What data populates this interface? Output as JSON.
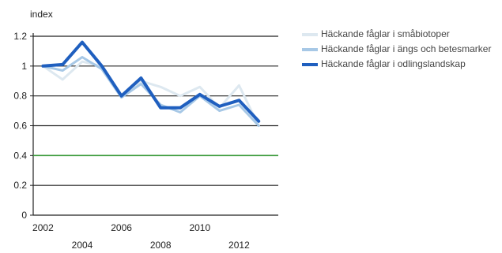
{
  "chart_data": {
    "type": "line",
    "ylabel": "index",
    "xlabel": "",
    "x": [
      2002,
      2003,
      2004,
      2005,
      2006,
      2007,
      2008,
      2009,
      2010,
      2011,
      2012,
      2013
    ],
    "xticks_upper": [
      "2002",
      "2006",
      "2010"
    ],
    "xticks_lower": [
      "2004",
      "2008",
      "2012"
    ],
    "xlim": [
      2001.5,
      2014
    ],
    "ylim": [
      0,
      1.2
    ],
    "yticks": [
      "0",
      "0.2",
      "0.4",
      "0.6",
      "0.8",
      "1",
      "1.2"
    ],
    "grid": true,
    "legend_position": "right",
    "reference_line": {
      "y": 0.4,
      "color": "#3a9a3a"
    },
    "series": [
      {
        "name": "Häckande fåglar i småbiotoper",
        "color": "#dde8f0",
        "values": [
          1.0,
          0.91,
          1.03,
          1.0,
          0.8,
          0.9,
          0.86,
          0.8,
          0.86,
          0.72,
          0.87,
          0.6
        ]
      },
      {
        "name": "Häckande fåglar i ängs och betesmarker",
        "color": "#a7c8e6",
        "values": [
          1.0,
          0.97,
          1.06,
          0.98,
          0.79,
          0.88,
          0.74,
          0.69,
          0.8,
          0.7,
          0.74,
          0.6
        ]
      },
      {
        "name": "Häckande fåglar i odlingslandskap",
        "color": "#1f5fbf",
        "values": [
          1.0,
          1.01,
          1.16,
          1.0,
          0.8,
          0.92,
          0.72,
          0.72,
          0.81,
          0.73,
          0.77,
          0.63
        ]
      }
    ]
  }
}
